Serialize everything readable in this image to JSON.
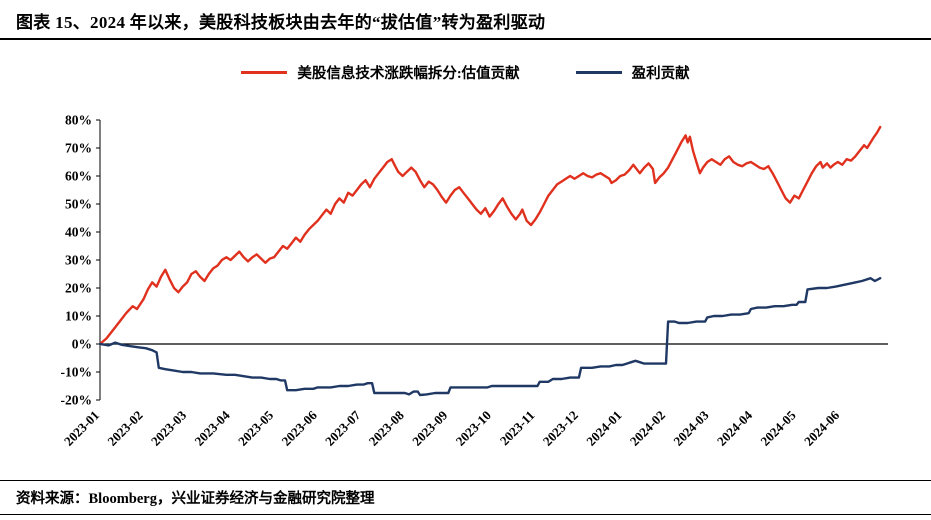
{
  "title": "图表 15、2024 年以来，美股科技板块由去年的“拔估值”转为盈利驱动",
  "source_note": "资料来源：Bloomberg，兴业证券经济与金融研究院整理",
  "legend": [
    {
      "label": "美股信息技术涨跌幅拆分:估值贡献",
      "color": "#e0301e"
    },
    {
      "label": "盈利贡献",
      "color": "#1f3864"
    }
  ],
  "chart_data": {
    "type": "line",
    "title": "",
    "xlabel": "",
    "ylabel": "",
    "grid": false,
    "legend_position": "top",
    "ylim": [
      -20,
      80
    ],
    "y_tick_step": 10,
    "y_tick_format": "percent",
    "x_unit": "months since 2023-01",
    "x_max": 18.1,
    "x_tick_labels": [
      "2023-01",
      "2023-02",
      "2023-03",
      "2023-04",
      "2023-05",
      "2023-06",
      "2023-07",
      "2023-08",
      "2023-09",
      "2023-10",
      "2023-11",
      "2023-12",
      "2024-01",
      "2024-02",
      "2024-03",
      "2024-04",
      "2024-05",
      "2024-06"
    ],
    "series": [
      {
        "name": "美股信息技术涨跌幅拆分:估值贡献",
        "color": "#e0301e",
        "points": [
          [
            0,
            0
          ],
          [
            0.15,
            2
          ],
          [
            0.3,
            5
          ],
          [
            0.45,
            8
          ],
          [
            0.6,
            11
          ],
          [
            0.75,
            13.5
          ],
          [
            0.85,
            12.5
          ],
          [
            1.0,
            16
          ],
          [
            1.1,
            19.5
          ],
          [
            1.2,
            22
          ],
          [
            1.3,
            20.5
          ],
          [
            1.4,
            24
          ],
          [
            1.5,
            26.5
          ],
          [
            1.6,
            23
          ],
          [
            1.7,
            20
          ],
          [
            1.8,
            18.5
          ],
          [
            1.9,
            20.5
          ],
          [
            2.0,
            22
          ],
          [
            2.1,
            25
          ],
          [
            2.2,
            26
          ],
          [
            2.3,
            24
          ],
          [
            2.4,
            22.5
          ],
          [
            2.5,
            25
          ],
          [
            2.6,
            27
          ],
          [
            2.7,
            28
          ],
          [
            2.8,
            30
          ],
          [
            2.9,
            31
          ],
          [
            3.0,
            30
          ],
          [
            3.1,
            31.5
          ],
          [
            3.2,
            33
          ],
          [
            3.3,
            31
          ],
          [
            3.4,
            29.5
          ],
          [
            3.5,
            31
          ],
          [
            3.6,
            32
          ],
          [
            3.7,
            30.5
          ],
          [
            3.8,
            29
          ],
          [
            3.9,
            30.5
          ],
          [
            4.0,
            31
          ],
          [
            4.1,
            33
          ],
          [
            4.2,
            35
          ],
          [
            4.3,
            34
          ],
          [
            4.4,
            36
          ],
          [
            4.5,
            38
          ],
          [
            4.6,
            36.5
          ],
          [
            4.7,
            39
          ],
          [
            4.8,
            41
          ],
          [
            4.9,
            42.5
          ],
          [
            5.0,
            44
          ],
          [
            5.1,
            46
          ],
          [
            5.2,
            48
          ],
          [
            5.3,
            46.5
          ],
          [
            5.4,
            50
          ],
          [
            5.5,
            52
          ],
          [
            5.6,
            50.5
          ],
          [
            5.7,
            54
          ],
          [
            5.8,
            53
          ],
          [
            5.9,
            55
          ],
          [
            6.0,
            57
          ],
          [
            6.1,
            58.5
          ],
          [
            6.2,
            56
          ],
          [
            6.3,
            59
          ],
          [
            6.4,
            61
          ],
          [
            6.5,
            63
          ],
          [
            6.6,
            65
          ],
          [
            6.7,
            66
          ],
          [
            6.78,
            63.5
          ],
          [
            6.85,
            61.5
          ],
          [
            6.95,
            60
          ],
          [
            7.05,
            61.5
          ],
          [
            7.15,
            63
          ],
          [
            7.25,
            61.5
          ],
          [
            7.35,
            58.5
          ],
          [
            7.45,
            56
          ],
          [
            7.55,
            58
          ],
          [
            7.65,
            57
          ],
          [
            7.75,
            55
          ],
          [
            7.85,
            52.5
          ],
          [
            7.95,
            50.5
          ],
          [
            8.05,
            53
          ],
          [
            8.15,
            55
          ],
          [
            8.25,
            56
          ],
          [
            8.35,
            54
          ],
          [
            8.45,
            52
          ],
          [
            8.55,
            50
          ],
          [
            8.65,
            48
          ],
          [
            8.75,
            46.5
          ],
          [
            8.85,
            48.5
          ],
          [
            8.95,
            45.5
          ],
          [
            9.05,
            47.5
          ],
          [
            9.15,
            50
          ],
          [
            9.25,
            52
          ],
          [
            9.35,
            49
          ],
          [
            9.45,
            46.5
          ],
          [
            9.55,
            44.5
          ],
          [
            9.65,
            46.5
          ],
          [
            9.7,
            48
          ],
          [
            9.8,
            44
          ],
          [
            9.9,
            42.5
          ],
          [
            10.0,
            44.5
          ],
          [
            10.1,
            47
          ],
          [
            10.2,
            50
          ],
          [
            10.3,
            53
          ],
          [
            10.4,
            55
          ],
          [
            10.5,
            57
          ],
          [
            10.6,
            58
          ],
          [
            10.7,
            59
          ],
          [
            10.8,
            60
          ],
          [
            10.9,
            59
          ],
          [
            11.0,
            60
          ],
          [
            11.1,
            61
          ],
          [
            11.2,
            60
          ],
          [
            11.3,
            59.5
          ],
          [
            11.4,
            60.5
          ],
          [
            11.5,
            61
          ],
          [
            11.6,
            60
          ],
          [
            11.7,
            59
          ],
          [
            11.75,
            57.5
          ],
          [
            11.85,
            58.5
          ],
          [
            11.95,
            60
          ],
          [
            12.05,
            60.5
          ],
          [
            12.15,
            62
          ],
          [
            12.25,
            64
          ],
          [
            12.3,
            63
          ],
          [
            12.4,
            61
          ],
          [
            12.5,
            63
          ],
          [
            12.6,
            64.5
          ],
          [
            12.7,
            62.5
          ],
          [
            12.75,
            57.5
          ],
          [
            12.85,
            59.5
          ],
          [
            12.95,
            61
          ],
          [
            13.05,
            63
          ],
          [
            13.15,
            66
          ],
          [
            13.25,
            69
          ],
          [
            13.35,
            72
          ],
          [
            13.45,
            74.5
          ],
          [
            13.5,
            72
          ],
          [
            13.55,
            74
          ],
          [
            13.62,
            69
          ],
          [
            13.7,
            65
          ],
          [
            13.78,
            61
          ],
          [
            13.85,
            63
          ],
          [
            13.95,
            65
          ],
          [
            14.05,
            66
          ],
          [
            14.15,
            65
          ],
          [
            14.25,
            64
          ],
          [
            14.35,
            66
          ],
          [
            14.45,
            67
          ],
          [
            14.55,
            65
          ],
          [
            14.65,
            64
          ],
          [
            14.75,
            63.5
          ],
          [
            14.85,
            64.5
          ],
          [
            14.95,
            65
          ],
          [
            15.05,
            64
          ],
          [
            15.15,
            63
          ],
          [
            15.25,
            62.5
          ],
          [
            15.35,
            63.5
          ],
          [
            15.45,
            61
          ],
          [
            15.55,
            58
          ],
          [
            15.65,
            55
          ],
          [
            15.75,
            52
          ],
          [
            15.85,
            50.5
          ],
          [
            15.95,
            53
          ],
          [
            16.05,
            52
          ],
          [
            16.15,
            55
          ],
          [
            16.25,
            58
          ],
          [
            16.35,
            61
          ],
          [
            16.45,
            63.5
          ],
          [
            16.55,
            65
          ],
          [
            16.6,
            63
          ],
          [
            16.7,
            64.5
          ],
          [
            16.78,
            63
          ],
          [
            16.85,
            64
          ],
          [
            16.95,
            65
          ],
          [
            17.05,
            64
          ],
          [
            17.15,
            66
          ],
          [
            17.25,
            65.5
          ],
          [
            17.35,
            67
          ],
          [
            17.45,
            69
          ],
          [
            17.55,
            71
          ],
          [
            17.62,
            70
          ],
          [
            17.7,
            72
          ],
          [
            17.78,
            74
          ],
          [
            17.85,
            75.5
          ],
          [
            17.92,
            77.5
          ]
        ]
      },
      {
        "name": "盈利贡献",
        "color": "#1f3864",
        "points": [
          [
            0,
            0
          ],
          [
            0.2,
            -0.5
          ],
          [
            0.35,
            0.5
          ],
          [
            0.5,
            -0.3
          ],
          [
            0.7,
            -0.8
          ],
          [
            0.9,
            -1.2
          ],
          [
            1.05,
            -1.5
          ],
          [
            1.2,
            -2.2
          ],
          [
            1.3,
            -3
          ],
          [
            1.35,
            -8.5
          ],
          [
            1.5,
            -9
          ],
          [
            1.7,
            -9.5
          ],
          [
            1.9,
            -10
          ],
          [
            2.1,
            -10
          ],
          [
            2.3,
            -10.5
          ],
          [
            2.6,
            -10.5
          ],
          [
            2.9,
            -11
          ],
          [
            3.1,
            -11
          ],
          [
            3.3,
            -11.5
          ],
          [
            3.5,
            -12
          ],
          [
            3.7,
            -12
          ],
          [
            3.9,
            -12.5
          ],
          [
            4.05,
            -12.5
          ],
          [
            4.15,
            -13
          ],
          [
            4.25,
            -13
          ],
          [
            4.3,
            -16.5
          ],
          [
            4.5,
            -16.5
          ],
          [
            4.7,
            -16
          ],
          [
            4.9,
            -16
          ],
          [
            5.0,
            -15.5
          ],
          [
            5.3,
            -15.5
          ],
          [
            5.5,
            -15
          ],
          [
            5.7,
            -15
          ],
          [
            5.9,
            -14.5
          ],
          [
            6.05,
            -14.5
          ],
          [
            6.15,
            -14
          ],
          [
            6.25,
            -14
          ],
          [
            6.3,
            -17.5
          ],
          [
            6.5,
            -17.5
          ],
          [
            6.7,
            -17.5
          ],
          [
            6.9,
            -17.5
          ],
          [
            7.0,
            -17.5
          ],
          [
            7.1,
            -18
          ],
          [
            7.2,
            -17
          ],
          [
            7.3,
            -17
          ],
          [
            7.35,
            -18.2
          ],
          [
            7.5,
            -18
          ],
          [
            7.7,
            -17.5
          ],
          [
            7.9,
            -17.5
          ],
          [
            8.0,
            -17.5
          ],
          [
            8.05,
            -15.5
          ],
          [
            8.3,
            -15.5
          ],
          [
            8.5,
            -15.5
          ],
          [
            8.7,
            -15.5
          ],
          [
            8.9,
            -15.5
          ],
          [
            9.0,
            -15
          ],
          [
            9.3,
            -15
          ],
          [
            9.6,
            -15
          ],
          [
            9.9,
            -15
          ],
          [
            10.05,
            -15
          ],
          [
            10.1,
            -13.5
          ],
          [
            10.3,
            -13.5
          ],
          [
            10.4,
            -12.5
          ],
          [
            10.6,
            -12.5
          ],
          [
            10.8,
            -12
          ],
          [
            11.0,
            -12
          ],
          [
            11.05,
            -8.5
          ],
          [
            11.3,
            -8.5
          ],
          [
            11.5,
            -8
          ],
          [
            11.7,
            -8
          ],
          [
            11.85,
            -7.5
          ],
          [
            12.0,
            -7.5
          ],
          [
            12.1,
            -7
          ],
          [
            12.2,
            -6.5
          ],
          [
            12.3,
            -6
          ],
          [
            12.4,
            -6.5
          ],
          [
            12.5,
            -7
          ],
          [
            12.7,
            -7
          ],
          [
            12.9,
            -7
          ],
          [
            13.0,
            -7
          ],
          [
            13.05,
            8
          ],
          [
            13.2,
            8
          ],
          [
            13.3,
            7.5
          ],
          [
            13.5,
            7.5
          ],
          [
            13.7,
            8
          ],
          [
            13.9,
            8
          ],
          [
            13.95,
            9.5
          ],
          [
            14.1,
            10
          ],
          [
            14.3,
            10
          ],
          [
            14.5,
            10.5
          ],
          [
            14.7,
            10.5
          ],
          [
            14.9,
            11
          ],
          [
            14.95,
            12.5
          ],
          [
            15.1,
            13
          ],
          [
            15.3,
            13
          ],
          [
            15.5,
            13.5
          ],
          [
            15.7,
            13.5
          ],
          [
            15.9,
            14
          ],
          [
            16.0,
            14
          ],
          [
            16.05,
            15
          ],
          [
            16.2,
            15
          ],
          [
            16.25,
            19.5
          ],
          [
            16.5,
            20
          ],
          [
            16.7,
            20
          ],
          [
            16.9,
            20.5
          ],
          [
            17.05,
            21
          ],
          [
            17.2,
            21.5
          ],
          [
            17.35,
            22
          ],
          [
            17.5,
            22.5
          ],
          [
            17.6,
            23
          ],
          [
            17.7,
            23.5
          ],
          [
            17.8,
            22.5
          ],
          [
            17.92,
            23.5
          ]
        ]
      }
    ]
  }
}
